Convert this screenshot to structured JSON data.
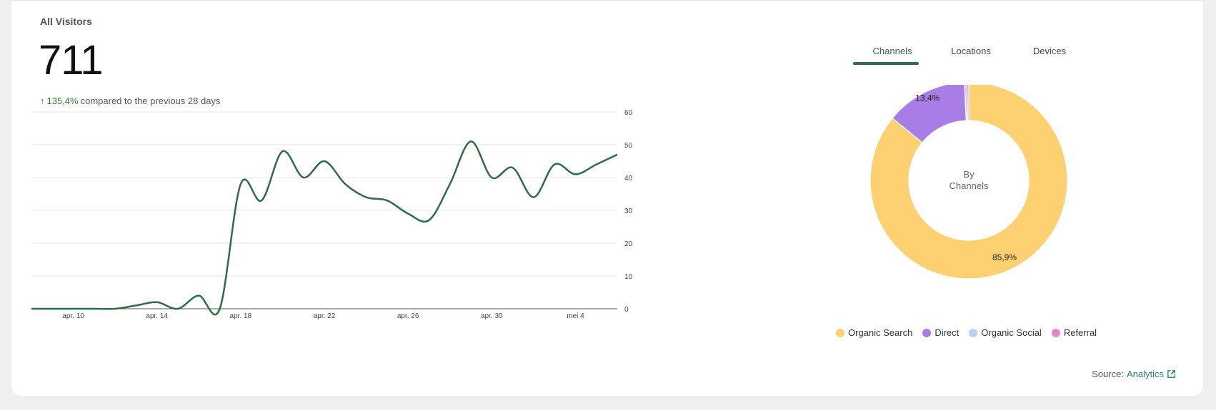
{
  "card": {
    "title": "All Visitors",
    "total": "711",
    "change_pct": "135,4%",
    "change_text": "compared to the previous 28 days",
    "change_icon": "arrow-up-icon"
  },
  "tabs": [
    {
      "label": "Channels",
      "active": true
    },
    {
      "label": "Locations",
      "active": false
    },
    {
      "label": "Devices",
      "active": false
    }
  ],
  "source": {
    "label": "Source:",
    "link": "Analytics",
    "icon": "external-link-icon"
  },
  "colors": {
    "line": "#2f6b45",
    "accent": "#2f6b45"
  },
  "chart_data": [
    {
      "type": "line",
      "x": [
        "apr. 8",
        "apr. 9",
        "apr. 10",
        "apr. 11",
        "apr. 12",
        "apr. 13",
        "apr. 14",
        "apr. 15",
        "apr. 16",
        "apr. 17",
        "apr. 18",
        "apr. 19",
        "apr. 20",
        "apr. 21",
        "apr. 22",
        "apr. 23",
        "apr. 24",
        "apr. 25",
        "apr. 26",
        "apr. 27",
        "apr. 28",
        "apr. 29",
        "apr. 30",
        "mei 1",
        "mei 2",
        "mei 3",
        "mei 4",
        "mei 5",
        "mei 6"
      ],
      "x_tick_labels": [
        "apr. 10",
        "apr. 14",
        "apr. 18",
        "apr. 22",
        "apr. 26",
        "apr. 30",
        "mei 4"
      ],
      "series": [
        {
          "values": [
            0,
            0,
            0,
            0,
            0,
            1,
            2,
            0,
            4,
            0,
            38,
            33,
            48,
            40,
            45,
            38,
            34,
            33,
            29,
            27,
            38,
            51,
            40,
            43,
            34,
            44,
            41,
            44,
            47
          ]
        }
      ],
      "y_ticks": [
        0,
        10,
        20,
        30,
        40,
        50,
        60
      ],
      "ylim": [
        0,
        60
      ],
      "xlabel": "",
      "ylabel": "",
      "y_axis_side": "right",
      "grid": true
    },
    {
      "type": "pie",
      "donut": true,
      "center_label": [
        "By",
        "Channels"
      ],
      "labels": [
        "Organic Search",
        "Direct",
        "Organic Social",
        "Referral"
      ],
      "values": [
        85.9,
        13.4,
        0.4,
        0.3
      ],
      "value_labels": [
        "85,9%",
        "13,4%",
        "",
        ""
      ],
      "colors": [
        "#fdd072",
        "#a87de6",
        "#b9cff7",
        "#ee84c9"
      ],
      "legend_position": "bottom"
    }
  ]
}
